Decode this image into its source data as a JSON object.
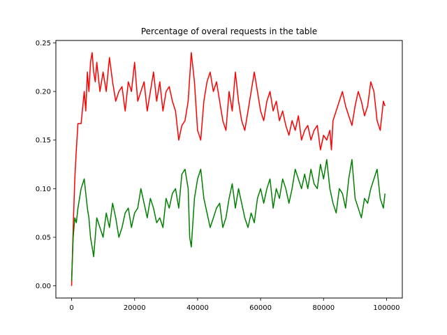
{
  "chart_data": {
    "type": "line",
    "title": "Percentage of overal requests in the table",
    "xlabel": "",
    "ylabel": "",
    "xlim": [
      -5000,
      105000
    ],
    "ylim": [
      -0.0125,
      0.2525
    ],
    "xticks": [
      0,
      20000,
      40000,
      60000,
      80000,
      100000
    ],
    "xtick_labels": [
      "0",
      "20000",
      "40000",
      "60000",
      "80000",
      "100000"
    ],
    "yticks": [
      0.0,
      0.05,
      0.1,
      0.15,
      0.2,
      0.25
    ],
    "ytick_labels": [
      "0.00",
      "0.05",
      "0.10",
      "0.15",
      "0.20",
      "0.25"
    ],
    "grid": false,
    "series": [
      {
        "name": "red",
        "color": "#ff0000",
        "x": [
          0,
          500,
          1000,
          1500,
          2000,
          3000,
          4000,
          4500,
          5000,
          5500,
          6000,
          6500,
          7000,
          7500,
          8000,
          9000,
          10000,
          11000,
          12000,
          13000,
          14000,
          15000,
          16000,
          17000,
          18000,
          19000,
          20000,
          21000,
          22000,
          23000,
          24000,
          25000,
          26000,
          27000,
          28000,
          29000,
          30000,
          31000,
          32000,
          33000,
          34000,
          35000,
          36000,
          37000,
          38000,
          39000,
          40000,
          41000,
          42000,
          43000,
          44000,
          45000,
          46000,
          47000,
          48000,
          49000,
          50000,
          51000,
          52000,
          53000,
          54000,
          55000,
          56000,
          57000,
          58000,
          59000,
          60000,
          61000,
          62000,
          63000,
          64000,
          65000,
          66000,
          67000,
          68000,
          69000,
          70000,
          71000,
          72000,
          73000,
          74000,
          75000,
          76000,
          77000,
          78000,
          79000,
          80000,
          81000,
          82000,
          82500,
          83000,
          84000,
          85000,
          86000,
          87000,
          88000,
          89000,
          90000,
          91000,
          92000,
          93000,
          94000,
          95000,
          96000,
          97000,
          98000,
          99000,
          99500
        ],
        "y": [
          0.0,
          0.06,
          0.11,
          0.14,
          0.167,
          0.167,
          0.2,
          0.18,
          0.22,
          0.2,
          0.23,
          0.24,
          0.22,
          0.21,
          0.23,
          0.2,
          0.22,
          0.2,
          0.235,
          0.21,
          0.19,
          0.2,
          0.205,
          0.18,
          0.21,
          0.2,
          0.23,
          0.19,
          0.2,
          0.21,
          0.18,
          0.2,
          0.22,
          0.19,
          0.21,
          0.18,
          0.2,
          0.205,
          0.19,
          0.18,
          0.15,
          0.165,
          0.17,
          0.19,
          0.24,
          0.21,
          0.16,
          0.15,
          0.19,
          0.21,
          0.22,
          0.2,
          0.21,
          0.19,
          0.17,
          0.16,
          0.2,
          0.18,
          0.22,
          0.19,
          0.17,
          0.16,
          0.18,
          0.2,
          0.22,
          0.2,
          0.18,
          0.17,
          0.19,
          0.2,
          0.18,
          0.19,
          0.17,
          0.18,
          0.165,
          0.155,
          0.17,
          0.16,
          0.175,
          0.15,
          0.16,
          0.165,
          0.15,
          0.16,
          0.165,
          0.14,
          0.155,
          0.15,
          0.16,
          0.14,
          0.17,
          0.18,
          0.19,
          0.2,
          0.185,
          0.175,
          0.165,
          0.185,
          0.2,
          0.19,
          0.175,
          0.185,
          0.21,
          0.2,
          0.17,
          0.16,
          0.19,
          0.185
        ]
      },
      {
        "name": "green",
        "color": "#008000",
        "x": [
          0,
          500,
          1000,
          1500,
          2000,
          3000,
          4000,
          5000,
          5500,
          6000,
          6500,
          7000,
          8000,
          9000,
          10000,
          11000,
          12000,
          13000,
          14000,
          15000,
          16000,
          17000,
          18000,
          19000,
          20000,
          21000,
          22000,
          23000,
          24000,
          25000,
          26000,
          27000,
          28000,
          29000,
          30000,
          31000,
          32000,
          33000,
          34000,
          35000,
          36000,
          37000,
          37500,
          38000,
          39000,
          40000,
          41000,
          42000,
          43000,
          44000,
          45000,
          46000,
          47000,
          48000,
          49000,
          50000,
          51000,
          52000,
          53000,
          54000,
          55000,
          56000,
          57000,
          58000,
          59000,
          60000,
          61000,
          62000,
          63000,
          64000,
          65000,
          66000,
          67000,
          68000,
          69000,
          70000,
          71000,
          72000,
          73000,
          74000,
          75000,
          76000,
          77000,
          78000,
          79000,
          80000,
          81000,
          82000,
          83000,
          84000,
          85000,
          86000,
          87000,
          88000,
          89000,
          90000,
          91000,
          92000,
          93000,
          94000,
          95000,
          96000,
          97000,
          98000,
          99000,
          99500
        ],
        "y": [
          0.005,
          0.05,
          0.07,
          0.065,
          0.08,
          0.1,
          0.11,
          0.08,
          0.07,
          0.05,
          0.04,
          0.03,
          0.07,
          0.06,
          0.05,
          0.075,
          0.06,
          0.085,
          0.07,
          0.05,
          0.06,
          0.075,
          0.08,
          0.06,
          0.075,
          0.08,
          0.1,
          0.085,
          0.07,
          0.09,
          0.08,
          0.065,
          0.07,
          0.06,
          0.09,
          0.08,
          0.095,
          0.1,
          0.08,
          0.115,
          0.12,
          0.1,
          0.05,
          0.04,
          0.09,
          0.11,
          0.12,
          0.09,
          0.075,
          0.06,
          0.07,
          0.08,
          0.085,
          0.06,
          0.07,
          0.09,
          0.105,
          0.08,
          0.1,
          0.085,
          0.07,
          0.06,
          0.075,
          0.065,
          0.09,
          0.1,
          0.085,
          0.1,
          0.11,
          0.08,
          0.1,
          0.09,
          0.11,
          0.1,
          0.085,
          0.1,
          0.12,
          0.11,
          0.1,
          0.115,
          0.1,
          0.12,
          0.105,
          0.1,
          0.125,
          0.11,
          0.13,
          0.1,
          0.085,
          0.075,
          0.1,
          0.095,
          0.08,
          0.11,
          0.13,
          0.09,
          0.08,
          0.07,
          0.09,
          0.085,
          0.1,
          0.11,
          0.12,
          0.09,
          0.08,
          0.095
        ]
      }
    ]
  }
}
